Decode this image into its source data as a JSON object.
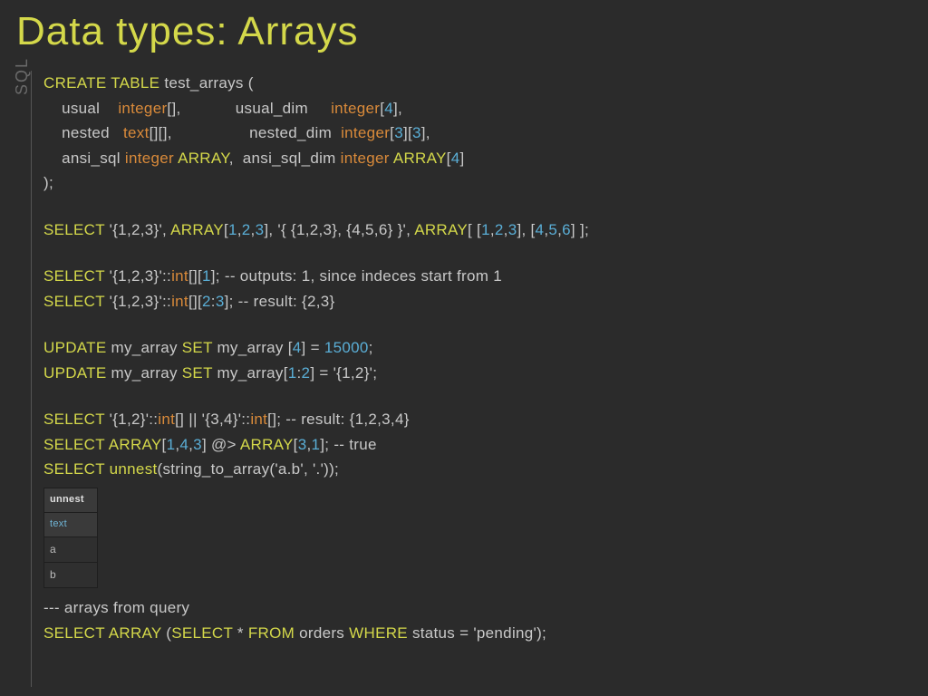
{
  "title": "Data types: Arrays",
  "sidebar_label": "SQL",
  "colors": {
    "background": "#2b2b2b",
    "title": "#d4d84a",
    "keyword": "#d4d84a",
    "type": "#d98a3a",
    "number": "#5aaed6",
    "text": "#c8c8c8",
    "muted": "#6a6a6a"
  },
  "table": {
    "header1": "unnest",
    "header2": "text",
    "rows": [
      "a",
      "b"
    ]
  },
  "code": {
    "l1": {
      "kw": "CREATE TABLE",
      "rest": " test_arrays ("
    },
    "l2": {
      "c1": "usual",
      "t1": "integer",
      "b1": "[]",
      "c2": "usual_dim",
      "t2": "integer",
      "b2": "[",
      "n2": "4",
      "b2e": "],"
    },
    "l3": {
      "c1": "nested",
      "t1": "text",
      "b1": "[][]",
      "c2": "nested_dim",
      "t2": "integer",
      "b2": "[",
      "n2a": "3",
      "mid": "][",
      "n2b": "3",
      "b2e": "],"
    },
    "l4": {
      "c1": "ansi_sql",
      "t1": "integer",
      "kw1": "ARRAY",
      "c2": "ansi_sql_dim",
      "t2": "integer",
      "kw2": "ARRAY",
      "b2": "[",
      "n2": "4",
      "b2e": "]"
    },
    "l5": ");",
    "l6": {
      "kw1": "SELECT",
      "s1": " '{1,2,3}', ",
      "kw2": "ARRAY",
      "br1": "[",
      "n1": "1",
      "c1": ",",
      "n2": "2",
      "c2": ",",
      "n3": "3",
      "br1e": "], ",
      "s2": "'{ {1,2,3}, {4,5,6} }', ",
      "kw3": "ARRAY",
      "br2": "[ [",
      "n4": "1",
      "c3": ",",
      "n5": "2",
      "c4": ",",
      "n6": "3",
      "mid": "], [",
      "n7": "4",
      "c5": ",",
      "n8": "5",
      "c6": ",",
      "n9": "6",
      "br2e": "] ];"
    },
    "l7": {
      "kw": "SELECT",
      "s": " '{1,2,3}'::",
      "t": "int",
      "b": "[][",
      "n": "1",
      "be": "]; ",
      "comment": "-- outputs: 1, since indeces start from 1"
    },
    "l8": {
      "kw": "SELECT",
      "s": " '{1,2,3}'::",
      "t": "int",
      "b": "[][",
      "n1": "2",
      "mid": ":",
      "n2": "3",
      "be": "]; ",
      "comment": "-- result: {2,3}"
    },
    "l9": {
      "kw1": "UPDATE",
      "s1": " my_array ",
      "kw2": "SET",
      "s2": " my_array [",
      "n1": "4",
      "mid": "] = ",
      "n2": "15000",
      "end": ";"
    },
    "l10": {
      "kw1": "UPDATE",
      "s1": " my_array ",
      "kw2": "SET",
      "s2": " my_array[",
      "n1": "1",
      "mid1": ":",
      "n2": "2",
      "mid2": "] = '{",
      "mid3": "1,2",
      "end": "}';"
    },
    "l11": {
      "kw": "SELECT",
      "s1": " '{1,2}'::",
      "t1": "int",
      "b1": "[]  ||  '{3,4}'::",
      "t2": "int",
      "b2": "[];  ",
      "comment": "-- result: {1,2,3,4}"
    },
    "l12": {
      "kw1": "SELECT",
      "sp1": " ",
      "kw2": "ARRAY",
      "b1": "[",
      "n1": "1",
      "c1": ",",
      "n2": "4",
      "c2": ",",
      "n3": "3",
      "mid": "] @> ",
      "kw3": "ARRAY",
      "b2": "[",
      "n4": "3",
      "c3": ",",
      "n5": "1",
      "end": "]; ",
      "comment": "-- true"
    },
    "l13": {
      "kw": "SELECT",
      "sp": " ",
      "fn": "unnest",
      "s": "(string_to_array('a.b', '.'));"
    },
    "l14": "--- arrays from query",
    "l15": {
      "kw1": "SELECT",
      "sp1": " ",
      "kw2": "ARRAY",
      "s1": " (",
      "kw3": "SELECT",
      "s2": " * ",
      "kw4": "FROM",
      "s3": " orders ",
      "kw5": "WHERE",
      "s4": " status = 'pending');"
    }
  }
}
